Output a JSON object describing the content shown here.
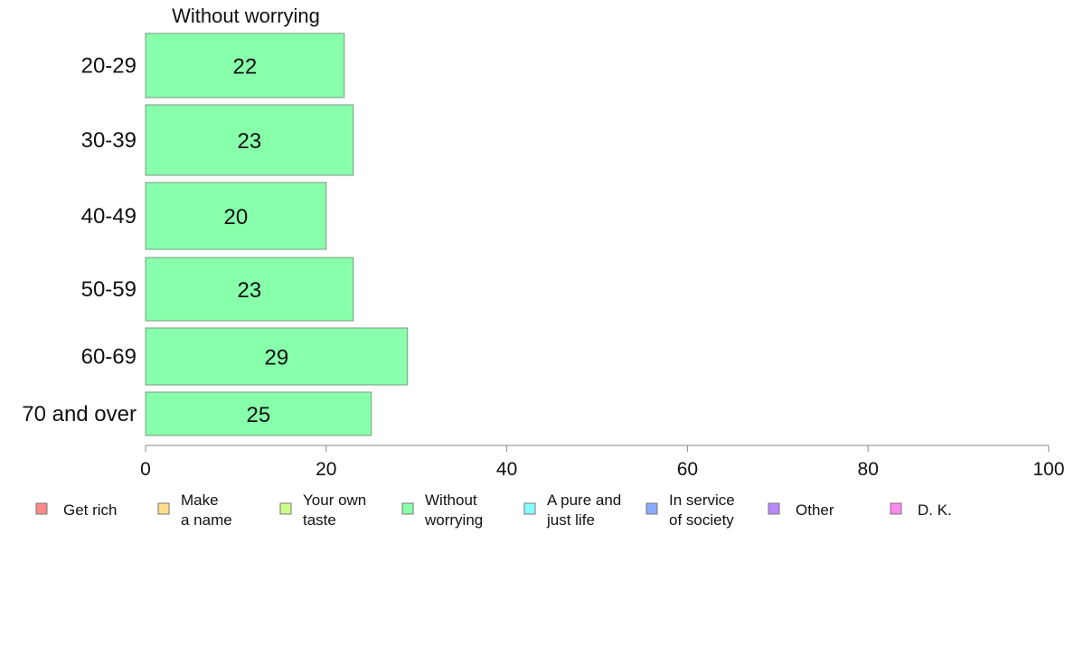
{
  "chart_data": {
    "type": "bar",
    "orientation": "horizontal",
    "title": "Without worrying",
    "categories": [
      "20-29",
      "30-39",
      "40-49",
      "50-59",
      "60-69",
      "70 and over"
    ],
    "series": [
      {
        "name": "Without worrying",
        "values": [
          22,
          23,
          20,
          23,
          29,
          25
        ],
        "color": "#88ffaa"
      }
    ],
    "xlim": [
      0,
      100
    ],
    "xticks": [
      0,
      20,
      40,
      60,
      80,
      100
    ],
    "grid": false,
    "legend_position": "bottom",
    "legend": [
      {
        "lines": [
          "Get rich"
        ],
        "color": "#ff8888"
      },
      {
        "lines": [
          "Make",
          "a name"
        ],
        "color": "#ffdd88"
      },
      {
        "lines": [
          "Your own",
          "taste"
        ],
        "color": "#ccff88"
      },
      {
        "lines": [
          "Without",
          "worrying"
        ],
        "color": "#88ffaa"
      },
      {
        "lines": [
          "A pure and",
          "just life"
        ],
        "color": "#88ffff"
      },
      {
        "lines": [
          "In service",
          "of society"
        ],
        "color": "#88aaff"
      },
      {
        "lines": [
          "Other"
        ],
        "color": "#bb88ff"
      },
      {
        "lines": [
          "D. K."
        ],
        "color": "#ff88ee"
      }
    ]
  }
}
